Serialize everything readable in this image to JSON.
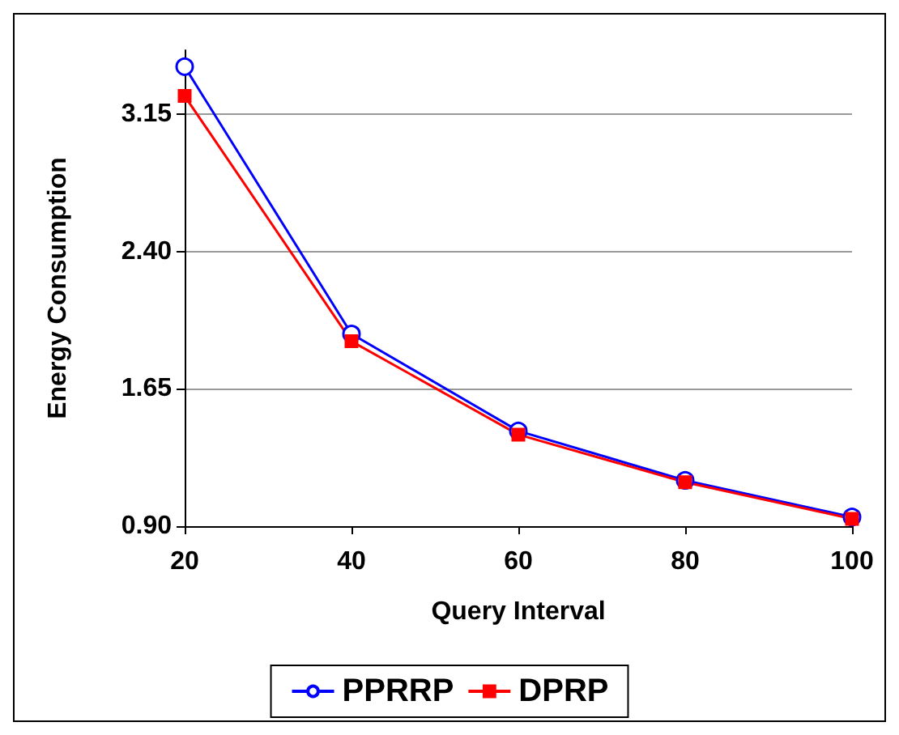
{
  "chart_data": {
    "type": "line",
    "xlabel": "Query Interval",
    "ylabel": "Energy Consumption",
    "x": [
      20,
      40,
      60,
      80,
      100
    ],
    "xlim": [
      20,
      100
    ],
    "xticks": [
      20,
      40,
      60,
      80,
      100
    ],
    "ylim": [
      0.9,
      3.5
    ],
    "yticks": [
      {
        "value": 0.9,
        "label": "0.90"
      },
      {
        "value": 1.65,
        "label": "1.65"
      },
      {
        "value": 2.4,
        "label": "2.40"
      },
      {
        "value": 3.15,
        "label": "3.15"
      }
    ],
    "grid": "y",
    "legend": "bottom",
    "series": [
      {
        "name": "PPRRP",
        "color": "#0000ff",
        "marker": "circle",
        "values": [
          3.41,
          1.95,
          1.42,
          1.15,
          0.95
        ]
      },
      {
        "name": "DPRP",
        "color": "#ff0000",
        "marker": "square",
        "values": [
          3.25,
          1.91,
          1.4,
          1.14,
          0.94
        ]
      }
    ]
  }
}
